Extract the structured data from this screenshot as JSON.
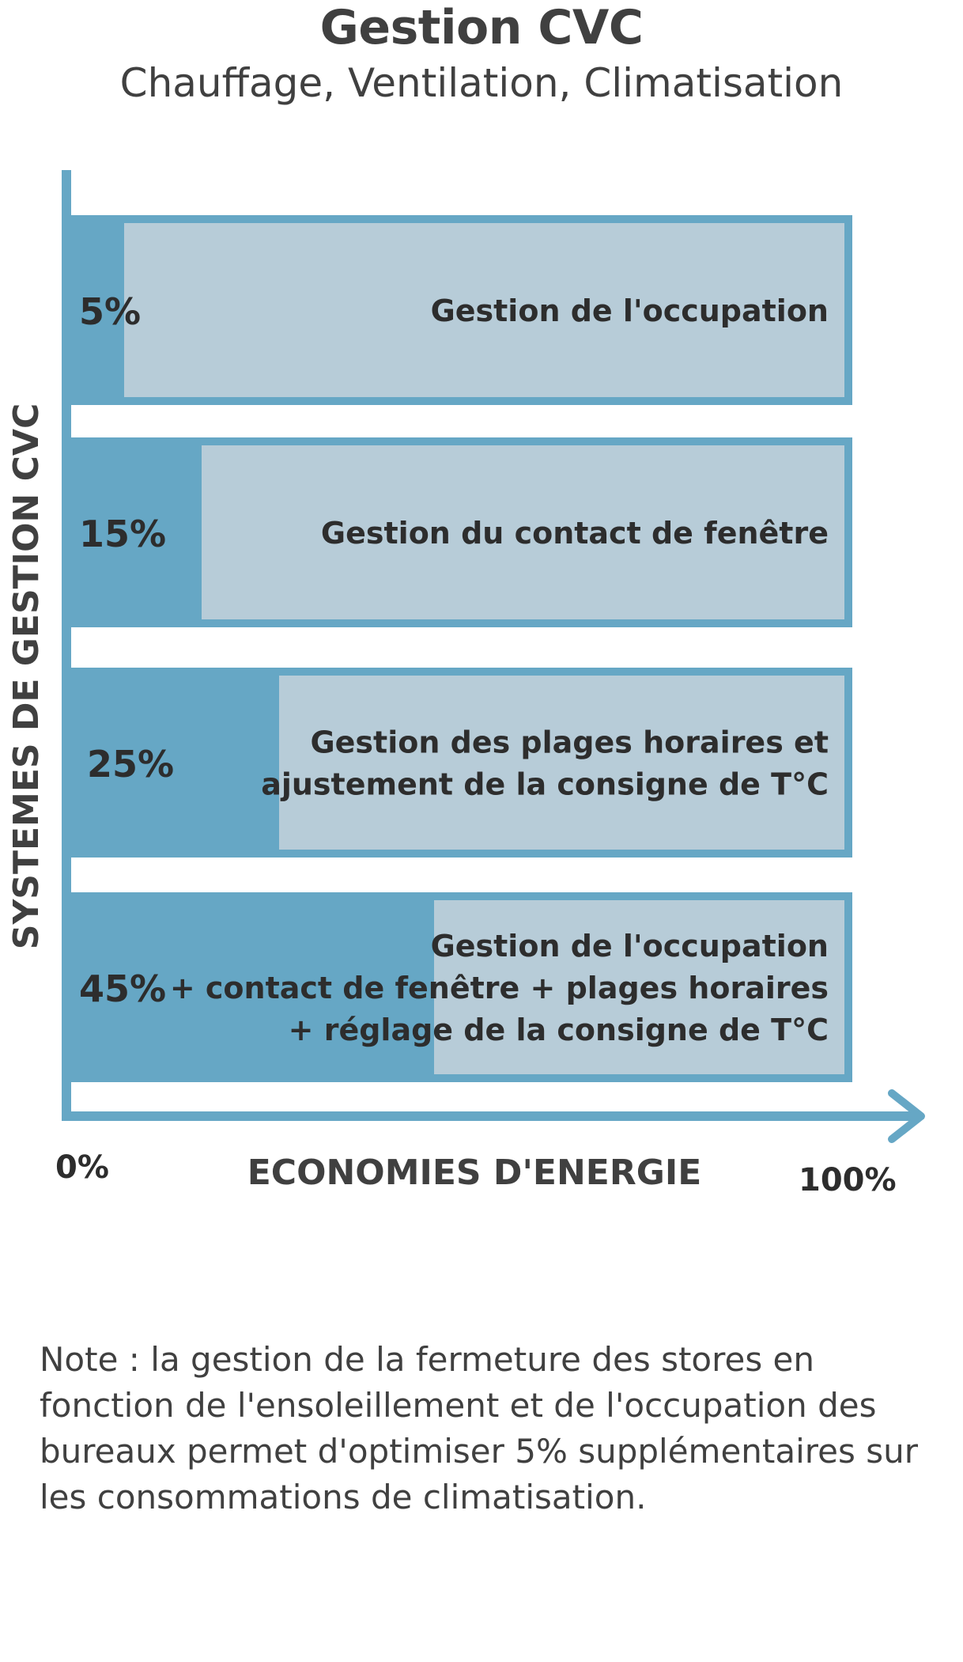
{
  "title": "Gestion CVC",
  "subtitle": "Chauffage, Ventilation, Climatisation",
  "chart_data": {
    "type": "bar",
    "orientation": "horizontal",
    "xlabel": "ECONOMIES D'ENERGIE",
    "ylabel": "SYSTEMES DE GESTION CVC",
    "xlim": [
      0,
      100
    ],
    "x_tick_labels": [
      "0%",
      "100%"
    ],
    "categories": [
      [
        "Gestion de l'occupation"
      ],
      [
        "Gestion du contact de fenêtre"
      ],
      [
        "Gestion des plages horaires et",
        "ajustement de la consigne de T°C"
      ],
      [
        "Gestion de l'occupation",
        "+ contact de fenêtre + plages horaires",
        "+ réglage de la consigne de T°C"
      ]
    ],
    "values": [
      5,
      15,
      25,
      45
    ],
    "value_labels": [
      "5%",
      "15%",
      "25%",
      "45%"
    ],
    "colors": {
      "filled": "#66a7c5",
      "remaining": "#b7ccd8",
      "axis": "#66a7c5"
    }
  },
  "note": "Note : la gestion de la fermeture des stores  en fonction de l'ensoleillement et de l'occupation des bureaux permet d'optimiser 5% supplémentaires sur les consommations de climatisation."
}
